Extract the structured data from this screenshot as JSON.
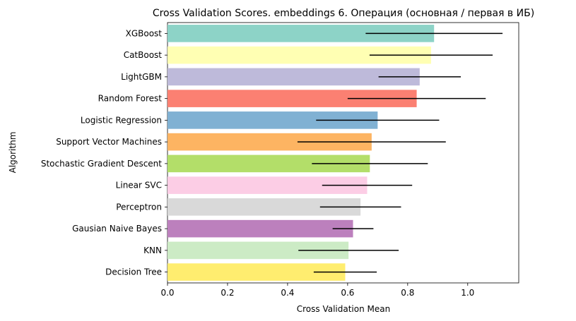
{
  "chart_data": {
    "type": "bar",
    "orientation": "horizontal",
    "title": "Cross Validation Scores. embeddings 6. Операция (основная / первая в ИБ)",
    "xlabel": "Cross Validation Mean",
    "ylabel": "Algorithm",
    "xlim": [
      0,
      1.17
    ],
    "xticks": [
      "0.0",
      "0.2",
      "0.4",
      "0.6",
      "0.8",
      "1.0"
    ],
    "grid": false,
    "categories": [
      "XGBoost",
      "CatBoost",
      "LightGBM",
      "Random Forest",
      "Logistic Regression",
      "Support Vector Machines",
      "Stochastic Gradient Descent",
      "Linear SVC",
      "Perceptron",
      "Gausian Naive Bayes",
      "KNN",
      "Decision Tree"
    ],
    "values": [
      0.888,
      0.878,
      0.84,
      0.83,
      0.7,
      0.68,
      0.674,
      0.665,
      0.643,
      0.618,
      0.603,
      0.592
    ],
    "errors": [
      0.228,
      0.205,
      0.137,
      0.23,
      0.205,
      0.247,
      0.193,
      0.15,
      0.135,
      0.068,
      0.167,
      0.105
    ],
    "colors": [
      "#8dd3c7",
      "#ffffb3",
      "#bebada",
      "#fb8072",
      "#80b1d3",
      "#fdb462",
      "#b3de69",
      "#fccde5",
      "#d9d9d9",
      "#bc80bd",
      "#ccebc5",
      "#ffed6f"
    ]
  }
}
